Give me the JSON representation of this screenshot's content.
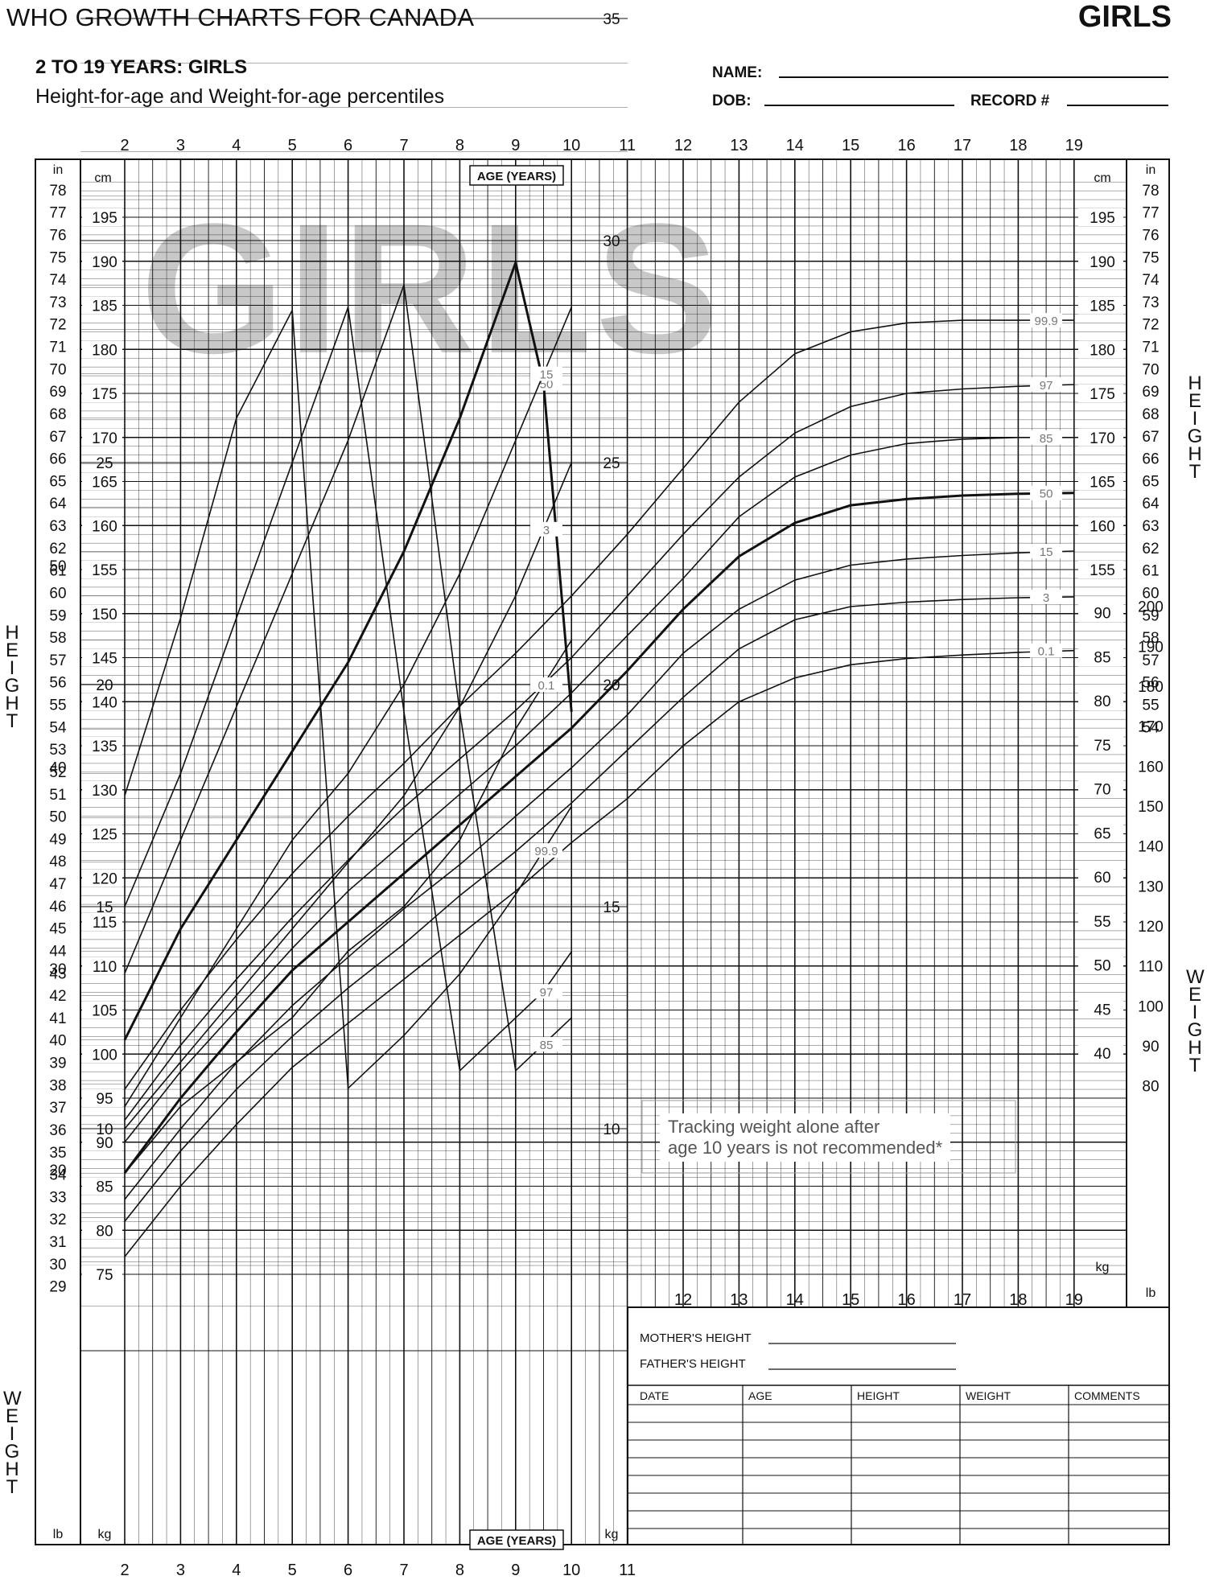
{
  "header": {
    "title": "WHO GROWTH CHARTS FOR CANADA",
    "sex_label": "GIRLS",
    "subtitle": "2 TO 19 YEARS: GIRLS",
    "subtitle2": "Height-for-age and Weight-for-age percentiles",
    "name_label": "NAME:",
    "dob_label": "DOB:",
    "record_label": "RECORD #"
  },
  "watermark": "GIRLS",
  "axis": {
    "age_label": "AGE (YEARS)",
    "height_side": "HEIGHT",
    "weight_side": "WEIGHT",
    "cm": "cm",
    "in": "in",
    "kg": "kg",
    "lb": "lb"
  },
  "note": {
    "line1": "Tracking weight alone after",
    "line2": "age 10 years is not recommended*"
  },
  "form": {
    "mother": "MOTHER'S HEIGHT",
    "father": "FATHER'S HEIGHT",
    "columns": [
      "DATE",
      "AGE",
      "HEIGHT",
      "WEIGHT",
      "COMMENTS"
    ]
  },
  "chart_data": [
    {
      "type": "line",
      "title": "Height-for-age percentiles",
      "xlabel": "AGE (YEARS)",
      "ylabel": "HEIGHT",
      "xlim": [
        2,
        19
      ],
      "ylim": [
        73,
        199
      ],
      "x": [
        2,
        3,
        4,
        5,
        6,
        7,
        8,
        9,
        10,
        11,
        12,
        13,
        14,
        15,
        16,
        17,
        18,
        19
      ],
      "x_ticks": [
        2,
        3,
        4,
        5,
        6,
        7,
        8,
        9,
        10,
        11,
        12,
        13,
        14,
        15,
        16,
        17,
        18,
        19
      ],
      "y_ticks_cm": [
        75,
        80,
        85,
        90,
        95,
        100,
        105,
        110,
        115,
        120,
        125,
        130,
        135,
        140,
        145,
        150,
        155,
        160,
        165,
        170,
        175,
        180,
        185,
        190,
        195
      ],
      "y_ticks_in_left": [
        29,
        30,
        31,
        32,
        33,
        34,
        35,
        36,
        37,
        38,
        39,
        40,
        41,
        42,
        43,
        44,
        45,
        46,
        47,
        48,
        49,
        50,
        51,
        52,
        53,
        54,
        55,
        56,
        57,
        58,
        59,
        60,
        61,
        62,
        63,
        64,
        65,
        66,
        67,
        68,
        69,
        70,
        71,
        72,
        73,
        74,
        75,
        76,
        77,
        78
      ],
      "y_ticks_in_right": [
        54,
        55,
        56,
        57,
        58,
        59,
        60,
        61,
        62,
        63,
        64,
        65,
        66,
        67,
        68,
        69,
        70,
        71,
        72,
        73,
        74,
        75,
        76,
        77,
        78
      ],
      "series": [
        {
          "name": "99.9",
          "values": [
            96,
            105,
            113,
            120.5,
            127,
            133,
            139.5,
            145.5,
            152,
            159,
            166.5,
            174,
            179.5,
            182,
            183,
            183.3,
            183.3,
            183.3
          ]
        },
        {
          "name": "97",
          "values": [
            92.5,
            101,
            108.5,
            115.5,
            122,
            128,
            133.5,
            139,
            145,
            152,
            159,
            165.5,
            170.5,
            173.5,
            175,
            175.5,
            175.8,
            176
          ]
        },
        {
          "name": "85",
          "values": [
            90,
            98,
            105,
            112,
            118.5,
            124,
            129.5,
            135,
            141,
            147.5,
            154,
            161,
            165.5,
            168,
            169.3,
            169.8,
            170,
            170
          ]
        },
        {
          "name": "50",
          "values": [
            86.5,
            95,
            102.5,
            109.5,
            115,
            120.5,
            126,
            131.5,
            137,
            143.5,
            150.5,
            156.5,
            160.3,
            162.3,
            163,
            163.4,
            163.6,
            163.7
          ]
        },
        {
          "name": "15",
          "values": [
            83.5,
            91.5,
            99,
            105.5,
            111,
            116.5,
            121.5,
            127,
            132.5,
            138.5,
            145.5,
            150.5,
            153.8,
            155.5,
            156.2,
            156.6,
            156.9,
            157.1
          ]
        },
        {
          "name": "3",
          "values": [
            81,
            89,
            96,
            102,
            107.5,
            112.5,
            118,
            123,
            128.5,
            134.5,
            140.5,
            146,
            149.3,
            150.8,
            151.3,
            151.6,
            151.8,
            151.9
          ]
        },
        {
          "name": "0.1",
          "values": [
            77,
            85,
            92,
            98.5,
            103.5,
            108.5,
            113.5,
            118.5,
            124,
            129,
            135,
            140,
            142.7,
            144.2,
            144.9,
            145.3,
            145.6,
            145.8
          ]
        }
      ]
    },
    {
      "type": "line",
      "title": "Weight-for-age percentiles",
      "xlabel": "AGE (YEARS)",
      "ylabel": "WEIGHT",
      "xlim": [
        2,
        10
      ],
      "ylim": [
        5,
        100
      ],
      "x": [
        2,
        3,
        4,
        5,
        6,
        7,
        8,
        9,
        9.5,
        10
      ],
      "y_ticks_kg": [
        10,
        15,
        20,
        25,
        30,
        35,
        40,
        45,
        50,
        55,
        60,
        65,
        70,
        75,
        80,
        85,
        90
      ],
      "y_ticks_lb": [
        20,
        30,
        40,
        50,
        60,
        70,
        80,
        90,
        100,
        110,
        120,
        130,
        140,
        150,
        160,
        170,
        180,
        190,
        200
      ],
      "series": [
        {
          "name": "99.9",
          "values": [
            17.5,
            21.5,
            26,
            30.5,
            36,
            42,
            49,
            58,
            63,
            68
          ]
        },
        {
          "name": "97",
          "values": [
            15,
            18,
            21.5,
            25,
            28.5,
            33,
            38,
            44,
            47,
            51.5
          ]
        },
        {
          "name": "85",
          "values": [
            13.5,
            16.5,
            19.5,
            22.5,
            25.5,
            29,
            33,
            38,
            41,
            44
          ]
        },
        {
          "name": "50",
          "values": [
            12,
            14.5,
            16.5,
            18.5,
            20.5,
            23,
            26,
            29.5,
            31,
            33
          ]
        },
        {
          "name": "15",
          "values": [
            10.5,
            12.5,
            14.5,
            16.5,
            18,
            20,
            22.5,
            25.5,
            27,
            28.5
          ]
        },
        {
          "name": "3",
          "values": [
            10,
            11.5,
            13,
            14.5,
            16,
            17.5,
            19.5,
            22,
            23.5,
            25
          ]
        },
        {
          "name": "0.1",
          "values": [
            9,
            10.5,
            11.5,
            12.5,
            14,
            15,
            16.5,
            19,
            20,
            21
          ]
        }
      ]
    }
  ]
}
